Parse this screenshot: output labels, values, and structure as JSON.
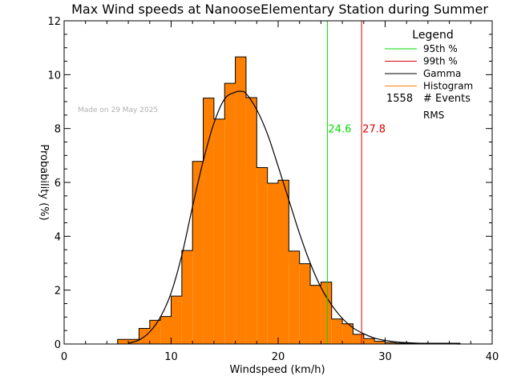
{
  "chart_data": {
    "type": "bar",
    "title": "Max Wind speeds at NanooseElementary Station during Summer",
    "xlabel": "Windspeed (km/h)",
    "ylabel": "Probability (%)",
    "xlim": [
      0,
      40
    ],
    "ylim": [
      0,
      12
    ],
    "xticks": [
      "0",
      "10",
      "20",
      "30",
      "40"
    ],
    "yticks": [
      "0",
      "2",
      "4",
      "6",
      "8",
      "10",
      "12"
    ],
    "watermark": "Made on 29 May 2025",
    "bin_width": 1,
    "bins": [
      {
        "x0": 5,
        "value": 0.17
      },
      {
        "x0": 6,
        "value": 0.17
      },
      {
        "x0": 7,
        "value": 0.58
      },
      {
        "x0": 8,
        "value": 0.88
      },
      {
        "x0": 9,
        "value": 1.02
      },
      {
        "x0": 10,
        "value": 1.78
      },
      {
        "x0": 11,
        "value": 3.47
      },
      {
        "x0": 12,
        "value": 6.78
      },
      {
        "x0": 13,
        "value": 9.13
      },
      {
        "x0": 14,
        "value": 8.35
      },
      {
        "x0": 15,
        "value": 9.68
      },
      {
        "x0": 16,
        "value": 10.66
      },
      {
        "x0": 17,
        "value": 9.15
      },
      {
        "x0": 18,
        "value": 6.55
      },
      {
        "x0": 19,
        "value": 5.97
      },
      {
        "x0": 20,
        "value": 6.08
      },
      {
        "x0": 21,
        "value": 3.45
      },
      {
        "x0": 22,
        "value": 2.98
      },
      {
        "x0": 23,
        "value": 2.18
      },
      {
        "x0": 24,
        "value": 2.3
      },
      {
        "x0": 25,
        "value": 0.93
      },
      {
        "x0": 26,
        "value": 0.75
      },
      {
        "x0": 27,
        "value": 0.36
      },
      {
        "x0": 28,
        "value": 0.2
      },
      {
        "x0": 29,
        "value": 0.1
      },
      {
        "x0": 30,
        "value": 0.05
      },
      {
        "x0": 31,
        "value": 0.03
      },
      {
        "x0": 32,
        "value": 0.03
      },
      {
        "x0": 33,
        "value": 0.03
      },
      {
        "x0": 34,
        "value": 0.03
      },
      {
        "x0": 35,
        "value": 0.03
      },
      {
        "x0": 36,
        "value": 0.03
      }
    ],
    "gamma_curve": {
      "x": [
        6.0,
        7.0,
        8.0,
        9.0,
        10.0,
        11.0,
        12.0,
        13.0,
        14.0,
        15.0,
        16.0,
        16.5,
        17.0,
        18.0,
        19.0,
        20.0,
        21.0,
        22.0,
        23.0,
        24.0,
        25.0,
        26.0,
        27.0,
        28.0,
        29.0,
        30.0,
        31.0,
        32.0,
        34.0,
        37.0
      ],
      "y": [
        0.03,
        0.15,
        0.45,
        1.0,
        1.9,
        3.3,
        5.1,
        6.8,
        8.2,
        9.1,
        9.35,
        9.38,
        9.3,
        8.7,
        7.8,
        6.6,
        5.35,
        4.1,
        3.0,
        2.1,
        1.45,
        0.95,
        0.6,
        0.38,
        0.22,
        0.13,
        0.08,
        0.05,
        0.02,
        0.0
      ]
    },
    "percentile_lines": [
      {
        "name": "95th %",
        "x": 24.6,
        "label": "24.6",
        "color": "#00dd00"
      },
      {
        "name": "99th %",
        "x": 27.8,
        "label": "27.8",
        "color": "#dd0000"
      }
    ],
    "legend": {
      "title": "Legend",
      "placement": "top-right",
      "entries": [
        {
          "name": "95th %",
          "color": "#00dd00"
        },
        {
          "name": "99th %",
          "color": "#dd0000"
        },
        {
          "name": "Gamma",
          "color": "#000000"
        },
        {
          "name": "Histogram",
          "color": "#ff8000"
        }
      ],
      "events_count": "1558",
      "events_label": "# Events",
      "rms_label": "RMS"
    },
    "colors": {
      "histogram_fill": "#ff8000",
      "histogram_edge": "#000000",
      "gamma_curve": "#000000",
      "watermark": "#b0b0b0"
    }
  }
}
